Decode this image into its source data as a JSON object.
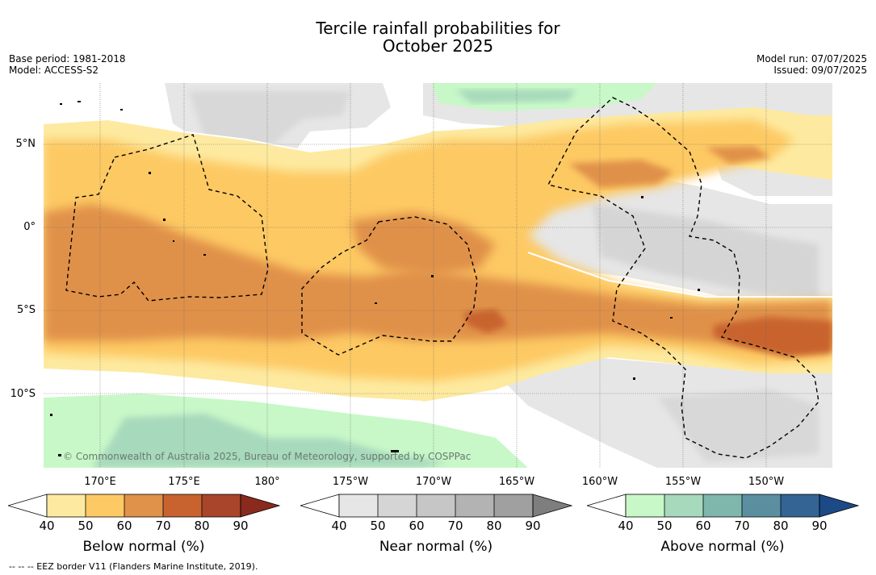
{
  "title_line1": "Tercile rainfall probabilities for",
  "title_line2": "October 2025",
  "base_period": "Base period: 1981-2018",
  "model": "Model: ACCESS-S2",
  "model_run": "Model run: 07/07/2025",
  "issued": "Issued: 09/07/2025",
  "copyright": "© Commonwealth of Australia 2025, Bureau of Meteorology, supported by COSPPac",
  "footnote": "--  --  -- EEZ border V11 (Flanders Marine Institute, 2019).",
  "lat_labels": [
    "5°N",
    "0°",
    "5°S",
    "10°S"
  ],
  "lon_labels": [
    "170°E",
    "175°E",
    "180°",
    "175°W",
    "170°W",
    "165°W",
    "160°W",
    "155°W",
    "150°W"
  ],
  "colorbars": [
    {
      "label": "Below normal (%)",
      "ticks": [
        "40",
        "50",
        "60",
        "70",
        "80",
        "90"
      ],
      "colors": [
        "#ffffff",
        "#fdeaa0",
        "#fdc964",
        "#e0914a",
        "#c8632f",
        "#a9452a",
        "#8a2a1c"
      ]
    },
    {
      "label": "Near normal (%)",
      "ticks": [
        "40",
        "50",
        "60",
        "70",
        "80",
        "90"
      ],
      "colors": [
        "#ffffff",
        "#e6e6e6",
        "#d5d5d5",
        "#c6c6c6",
        "#b3b3b3",
        "#a0a0a0",
        "#7e7e7e"
      ]
    },
    {
      "label": "Above normal (%)",
      "ticks": [
        "40",
        "50",
        "60",
        "70",
        "80",
        "90"
      ],
      "colors": [
        "#ffffff",
        "#c8f8c8",
        "#a7d9bc",
        "#7fb7ac",
        "#5b8fa0",
        "#336494",
        "#1c4a86"
      ]
    }
  ],
  "colors": {
    "below_50": "#fdeaa0",
    "below_60": "#fdc964",
    "below_70": "#e0914a",
    "below_80": "#c8632f",
    "near_50": "#e6e6e6",
    "near_60": "#d5d5d5",
    "above_50": "#c8f8c8",
    "above_60": "#a7d9bc"
  }
}
